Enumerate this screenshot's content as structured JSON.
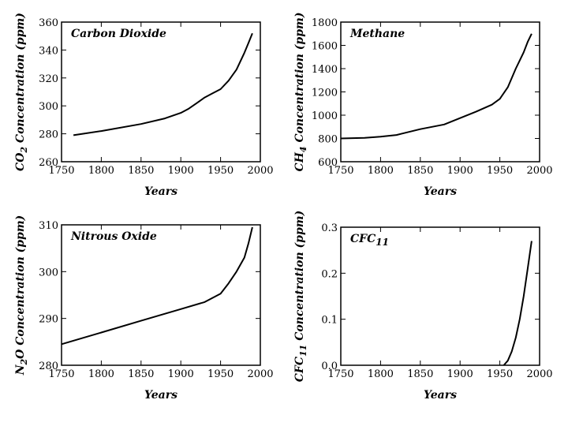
{
  "chart_data": [
    {
      "type": "line",
      "title": "Carbon Dioxide",
      "xlabel": "Years",
      "ylabel": "CO2 Concentration (ppm)",
      "ylabel_parts": {
        "pre": "CO",
        "sub": "2",
        "post": " Concentration (ppm)"
      },
      "xlim": [
        1750,
        2000
      ],
      "ylim": [
        260,
        360
      ],
      "xticks": [
        1750,
        1800,
        1850,
        1900,
        1950,
        2000
      ],
      "yticks": [
        260,
        280,
        300,
        320,
        340,
        360
      ],
      "series": [
        {
          "name": "CO2",
          "x": [
            1765,
            1800,
            1850,
            1880,
            1900,
            1910,
            1920,
            1930,
            1940,
            1950,
            1960,
            1970,
            1980,
            1985,
            1990
          ],
          "y": [
            279,
            282,
            287,
            291,
            295,
            298,
            302,
            306,
            309,
            312,
            318,
            326,
            338,
            345,
            352
          ]
        }
      ]
    },
    {
      "type": "line",
      "title": "Methane",
      "xlabel": "Years",
      "ylabel": "CH4 Concentration (ppm)",
      "ylabel_parts": {
        "pre": "CH",
        "sub": "4",
        "post": " Concentration (ppm)"
      },
      "xlim": [
        1750,
        2000
      ],
      "ylim": [
        600,
        1800
      ],
      "xticks": [
        1750,
        1800,
        1850,
        1900,
        1950,
        2000
      ],
      "yticks": [
        600,
        800,
        1000,
        1200,
        1400,
        1600,
        1800
      ],
      "series": [
        {
          "name": "CH4",
          "x": [
            1750,
            1780,
            1800,
            1820,
            1850,
            1880,
            1900,
            1920,
            1940,
            1950,
            1960,
            1970,
            1975,
            1980,
            1985,
            1990
          ],
          "y": [
            800,
            805,
            815,
            830,
            880,
            920,
            975,
            1030,
            1090,
            1140,
            1240,
            1400,
            1470,
            1540,
            1630,
            1700
          ]
        }
      ]
    },
    {
      "type": "line",
      "title": "Nitrous Oxide",
      "xlabel": "Years",
      "ylabel": "N2O Concentration (ppm)",
      "ylabel_parts": {
        "pre": "N",
        "sub": "2",
        "post": "O Concentration (ppm)"
      },
      "xlim": [
        1750,
        2000
      ],
      "ylim": [
        280,
        310
      ],
      "xticks": [
        1750,
        1800,
        1850,
        1900,
        1950,
        2000
      ],
      "yticks": [
        280,
        290,
        300,
        310
      ],
      "series": [
        {
          "name": "N2O",
          "x": [
            1750,
            1800,
            1850,
            1900,
            1930,
            1950,
            1960,
            1970,
            1980,
            1985,
            1990
          ],
          "y": [
            284.5,
            287,
            289.5,
            292,
            293.5,
            295.3,
            297.5,
            300,
            303,
            306,
            309.5
          ]
        }
      ]
    },
    {
      "type": "line",
      "title": "CFC11",
      "title_parts": {
        "pre": "CFC",
        "sub": "11"
      },
      "xlabel": "Years",
      "ylabel": "CFC11 Concentration (ppm)",
      "ylabel_parts": {
        "pre": "CFC",
        "sub": "11",
        "post": " Concentration (ppm)"
      },
      "xlim": [
        1750,
        2000
      ],
      "ylim": [
        0.0,
        0.3
      ],
      "xticks": [
        1750,
        1800,
        1850,
        1900,
        1950,
        2000
      ],
      "yticks": [
        "0.0",
        "0.1",
        "0.2",
        "0.3"
      ],
      "series": [
        {
          "name": "CFC11",
          "x": [
            1955,
            1960,
            1965,
            1970,
            1975,
            1980,
            1985,
            1990
          ],
          "y": [
            0.0,
            0.01,
            0.03,
            0.06,
            0.1,
            0.15,
            0.21,
            0.27
          ]
        }
      ]
    }
  ]
}
